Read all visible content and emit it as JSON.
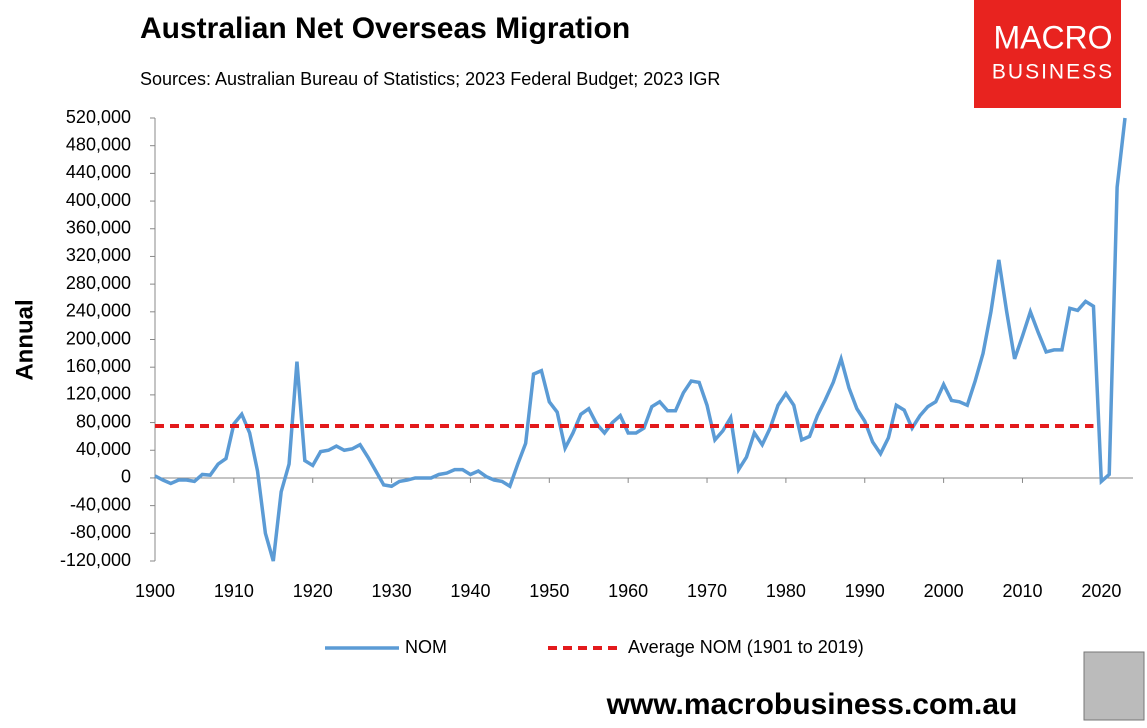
{
  "chart_data": {
    "type": "line",
    "title": "Australian Net Overseas Migration",
    "subtitle": "Sources: Australian Bureau of Statistics; 2023 Federal Budget; 2023 IGR",
    "y_label": "Annual",
    "logo": [
      "MACRO",
      "BUSINESS"
    ],
    "footer": "www.macrobusiness.com.au",
    "xlim": [
      1900,
      2023
    ],
    "xticks": [
      1900,
      1910,
      1920,
      1930,
      1940,
      1950,
      1960,
      1970,
      1980,
      1990,
      2000,
      2010,
      2020
    ],
    "ylim": [
      -120000,
      520000
    ],
    "yticks": [
      {
        "value": -120000,
        "label": "-120,000"
      },
      {
        "value": -80000,
        "label": "-80,000"
      },
      {
        "value": -40000,
        "label": "-40,000"
      },
      0,
      {
        "value": 40000,
        "label": "40,000"
      },
      {
        "value": 80000,
        "label": "80,000"
      },
      {
        "value": 120000,
        "label": "120,000"
      },
      {
        "value": 160000,
        "label": "160,000"
      },
      {
        "value": 200000,
        "label": "200,000"
      },
      {
        "value": 240000,
        "label": "240,000"
      },
      {
        "value": 280000,
        "label": "280,000"
      },
      {
        "value": 320000,
        "label": "320,000"
      },
      {
        "value": 360000,
        "label": "360,000"
      },
      {
        "value": 400000,
        "label": "400,000"
      },
      {
        "value": 440000,
        "label": "440,000"
      },
      {
        "value": 480000,
        "label": "480,000"
      },
      {
        "value": 520000,
        "label": "520,000"
      }
    ],
    "grid": false,
    "series": [
      {
        "name": "NOM",
        "color": "#5b9bd5",
        "dashed": false,
        "x": [
          1900,
          1901,
          1902,
          1903,
          1904,
          1905,
          1906,
          1907,
          1908,
          1909,
          1910,
          1911,
          1912,
          1913,
          1914,
          1915,
          1916,
          1917,
          1918,
          1919,
          1920,
          1921,
          1922,
          1923,
          1924,
          1925,
          1926,
          1927,
          1928,
          1929,
          1930,
          1931,
          1932,
          1933,
          1934,
          1935,
          1936,
          1937,
          1938,
          1939,
          1940,
          1941,
          1942,
          1943,
          1944,
          1945,
          1946,
          1947,
          1948,
          1949,
          1950,
          1951,
          1952,
          1953,
          1954,
          1955,
          1956,
          1957,
          1958,
          1959,
          1960,
          1961,
          1962,
          1963,
          1964,
          1965,
          1966,
          1967,
          1968,
          1969,
          1970,
          1971,
          1972,
          1973,
          1974,
          1975,
          1976,
          1977,
          1978,
          1979,
          1980,
          1981,
          1982,
          1983,
          1984,
          1985,
          1986,
          1987,
          1988,
          1989,
          1990,
          1991,
          1992,
          1993,
          1994,
          1995,
          1996,
          1997,
          1998,
          1999,
          2000,
          2001,
          2002,
          2003,
          2004,
          2005,
          2006,
          2007,
          2008,
          2009,
          2010,
          2011,
          2012,
          2013,
          2014,
          2015,
          2016,
          2017,
          2018,
          2019,
          2020,
          2021,
          2022,
          2023
        ],
        "values": [
          3000,
          -3000,
          -8000,
          -3000,
          -3000,
          -5000,
          5000,
          4000,
          20000,
          28000,
          78000,
          92000,
          65000,
          10000,
          -80000,
          -120000,
          -20000,
          20000,
          168000,
          25000,
          18000,
          38000,
          40000,
          46000,
          40000,
          42000,
          48000,
          30000,
          10000,
          -10000,
          -12000,
          -5000,
          -3000,
          0,
          0,
          0,
          5000,
          7000,
          12000,
          12000,
          5000,
          10000,
          2000,
          -3000,
          -5000,
          -12000,
          20000,
          50000,
          150000,
          155000,
          110000,
          95000,
          43000,
          65000,
          92000,
          100000,
          78000,
          65000,
          80000,
          90000,
          65000,
          65000,
          72000,
          103000,
          110000,
          97000,
          97000,
          123000,
          140000,
          138000,
          105000,
          55000,
          68000,
          87000,
          12000,
          30000,
          65000,
          48000,
          72000,
          105000,
          122000,
          105000,
          55000,
          60000,
          90000,
          113000,
          138000,
          172000,
          130000,
          100000,
          82000,
          52000,
          35000,
          58000,
          105000,
          98000,
          72000,
          90000,
          103000,
          110000,
          135000,
          112000,
          110000,
          105000,
          140000,
          180000,
          240000,
          315000,
          240000,
          172000,
          205000,
          240000,
          210000,
          182000,
          185000,
          185000,
          245000,
          242000,
          255000,
          248000,
          -5000,
          5000,
          420000,
          520000
        ]
      },
      {
        "name": "Average NOM (1901 to 2019)",
        "color": "#e31a1c",
        "dashed": true,
        "x": [
          1900,
          2019
        ],
        "values": [
          75000,
          75000
        ]
      }
    ]
  }
}
